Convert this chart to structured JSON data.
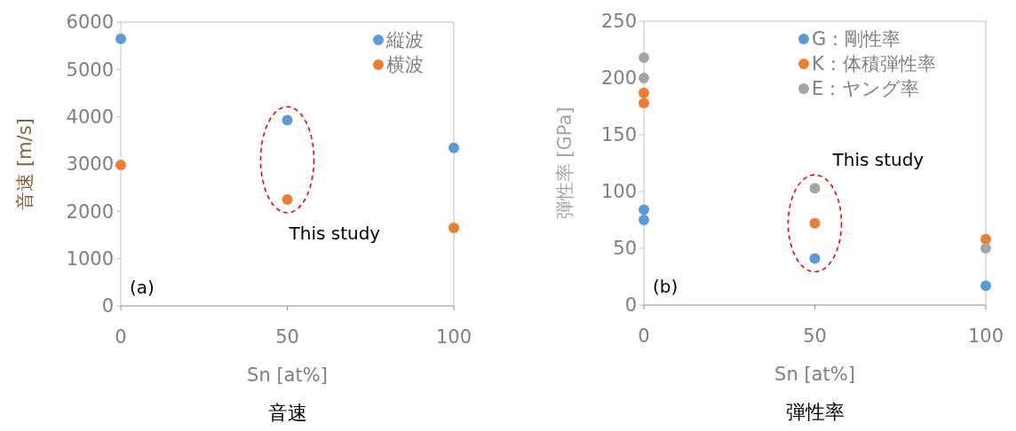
{
  "chart_data": [
    {
      "type": "scatter",
      "title": "音速",
      "xlabel": "Sn [at%]",
      "ylabel": "音速 [m/s]",
      "xlim": [
        0,
        100
      ],
      "xticks": [
        0,
        50,
        100
      ],
      "ylim": [
        0,
        6000
      ],
      "yticks": [
        0,
        1000,
        2000,
        3000,
        4000,
        5000,
        6000
      ],
      "marker": "circle",
      "legend": "top right",
      "annotations": [
        "(a)",
        "This study"
      ],
      "series": [
        {
          "name": "縦波",
          "color": "#5b9bd5",
          "x": [
            0,
            50,
            100
          ],
          "values": [
            5650,
            3930,
            3340
          ]
        },
        {
          "name": "横波",
          "color": "#ed7d31",
          "x": [
            0,
            50,
            100
          ],
          "values": [
            2980,
            2250,
            1650
          ]
        }
      ]
    },
    {
      "type": "scatter",
      "title": "弾性率",
      "xlabel": "Sn [at%]",
      "ylabel": "弾性率 [GPa]",
      "xlim": [
        0,
        100
      ],
      "xticks": [
        0,
        50,
        100
      ],
      "ylim": [
        0,
        250
      ],
      "yticks": [
        0,
        50,
        100,
        150,
        200,
        250
      ],
      "marker": "circle",
      "legend": "top right",
      "annotations": [
        "(b)",
        "This study"
      ],
      "series": [
        {
          "name": "G：剛性率",
          "color": "#5b9bd5",
          "x": [
            0,
            0,
            50,
            100
          ],
          "values": [
            84,
            75,
            41,
            17
          ]
        },
        {
          "name": "K：体積弾性率",
          "color": "#ed7d31",
          "x": [
            0,
            0,
            50,
            100
          ],
          "values": [
            187,
            178,
            72,
            58
          ]
        },
        {
          "name": "E：ヤング率",
          "color": "#a5a5a5",
          "x": [
            0,
            0,
            50,
            100
          ],
          "values": [
            218,
            200,
            103,
            50
          ]
        }
      ]
    }
  ]
}
